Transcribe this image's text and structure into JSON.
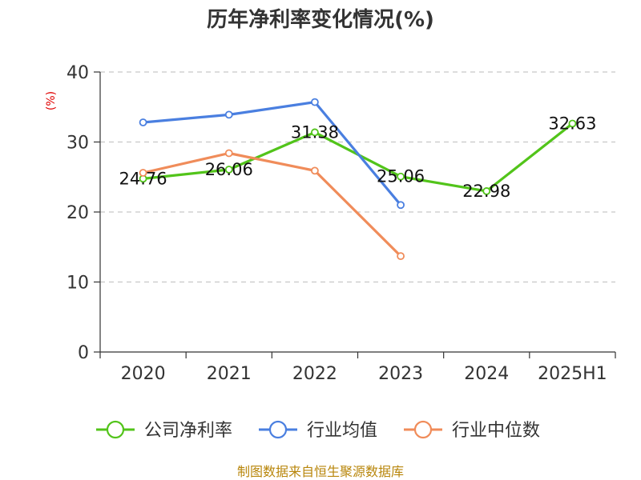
{
  "chart_data": {
    "type": "line",
    "title": "历年净利率变化情况(%)",
    "ylabel": "(%)",
    "categories": [
      "2020",
      "2021",
      "2022",
      "2023",
      "2024",
      "2025H1"
    ],
    "ylim": [
      0,
      40
    ],
    "yticks": [
      "0",
      "10",
      "20",
      "30",
      "40"
    ],
    "grid": true,
    "legend_position": "bottom",
    "series": [
      {
        "name": "公司净利率",
        "color": "#52c41a",
        "values": [
          24.76,
          26.06,
          31.38,
          25.06,
          22.98,
          32.63
        ],
        "labels": [
          "24.76",
          "26.06",
          "31.38",
          "25.06",
          "22.98",
          "32.63"
        ]
      },
      {
        "name": "行业均值",
        "color": "#4a7fe0",
        "values": [
          32.8,
          33.9,
          35.7,
          21.0,
          null,
          null
        ]
      },
      {
        "name": "行业中位数",
        "color": "#f08c5a",
        "values": [
          25.6,
          28.4,
          25.9,
          13.7,
          null,
          null
        ]
      }
    ]
  },
  "footer": "制图数据来自恒生聚源数据库"
}
